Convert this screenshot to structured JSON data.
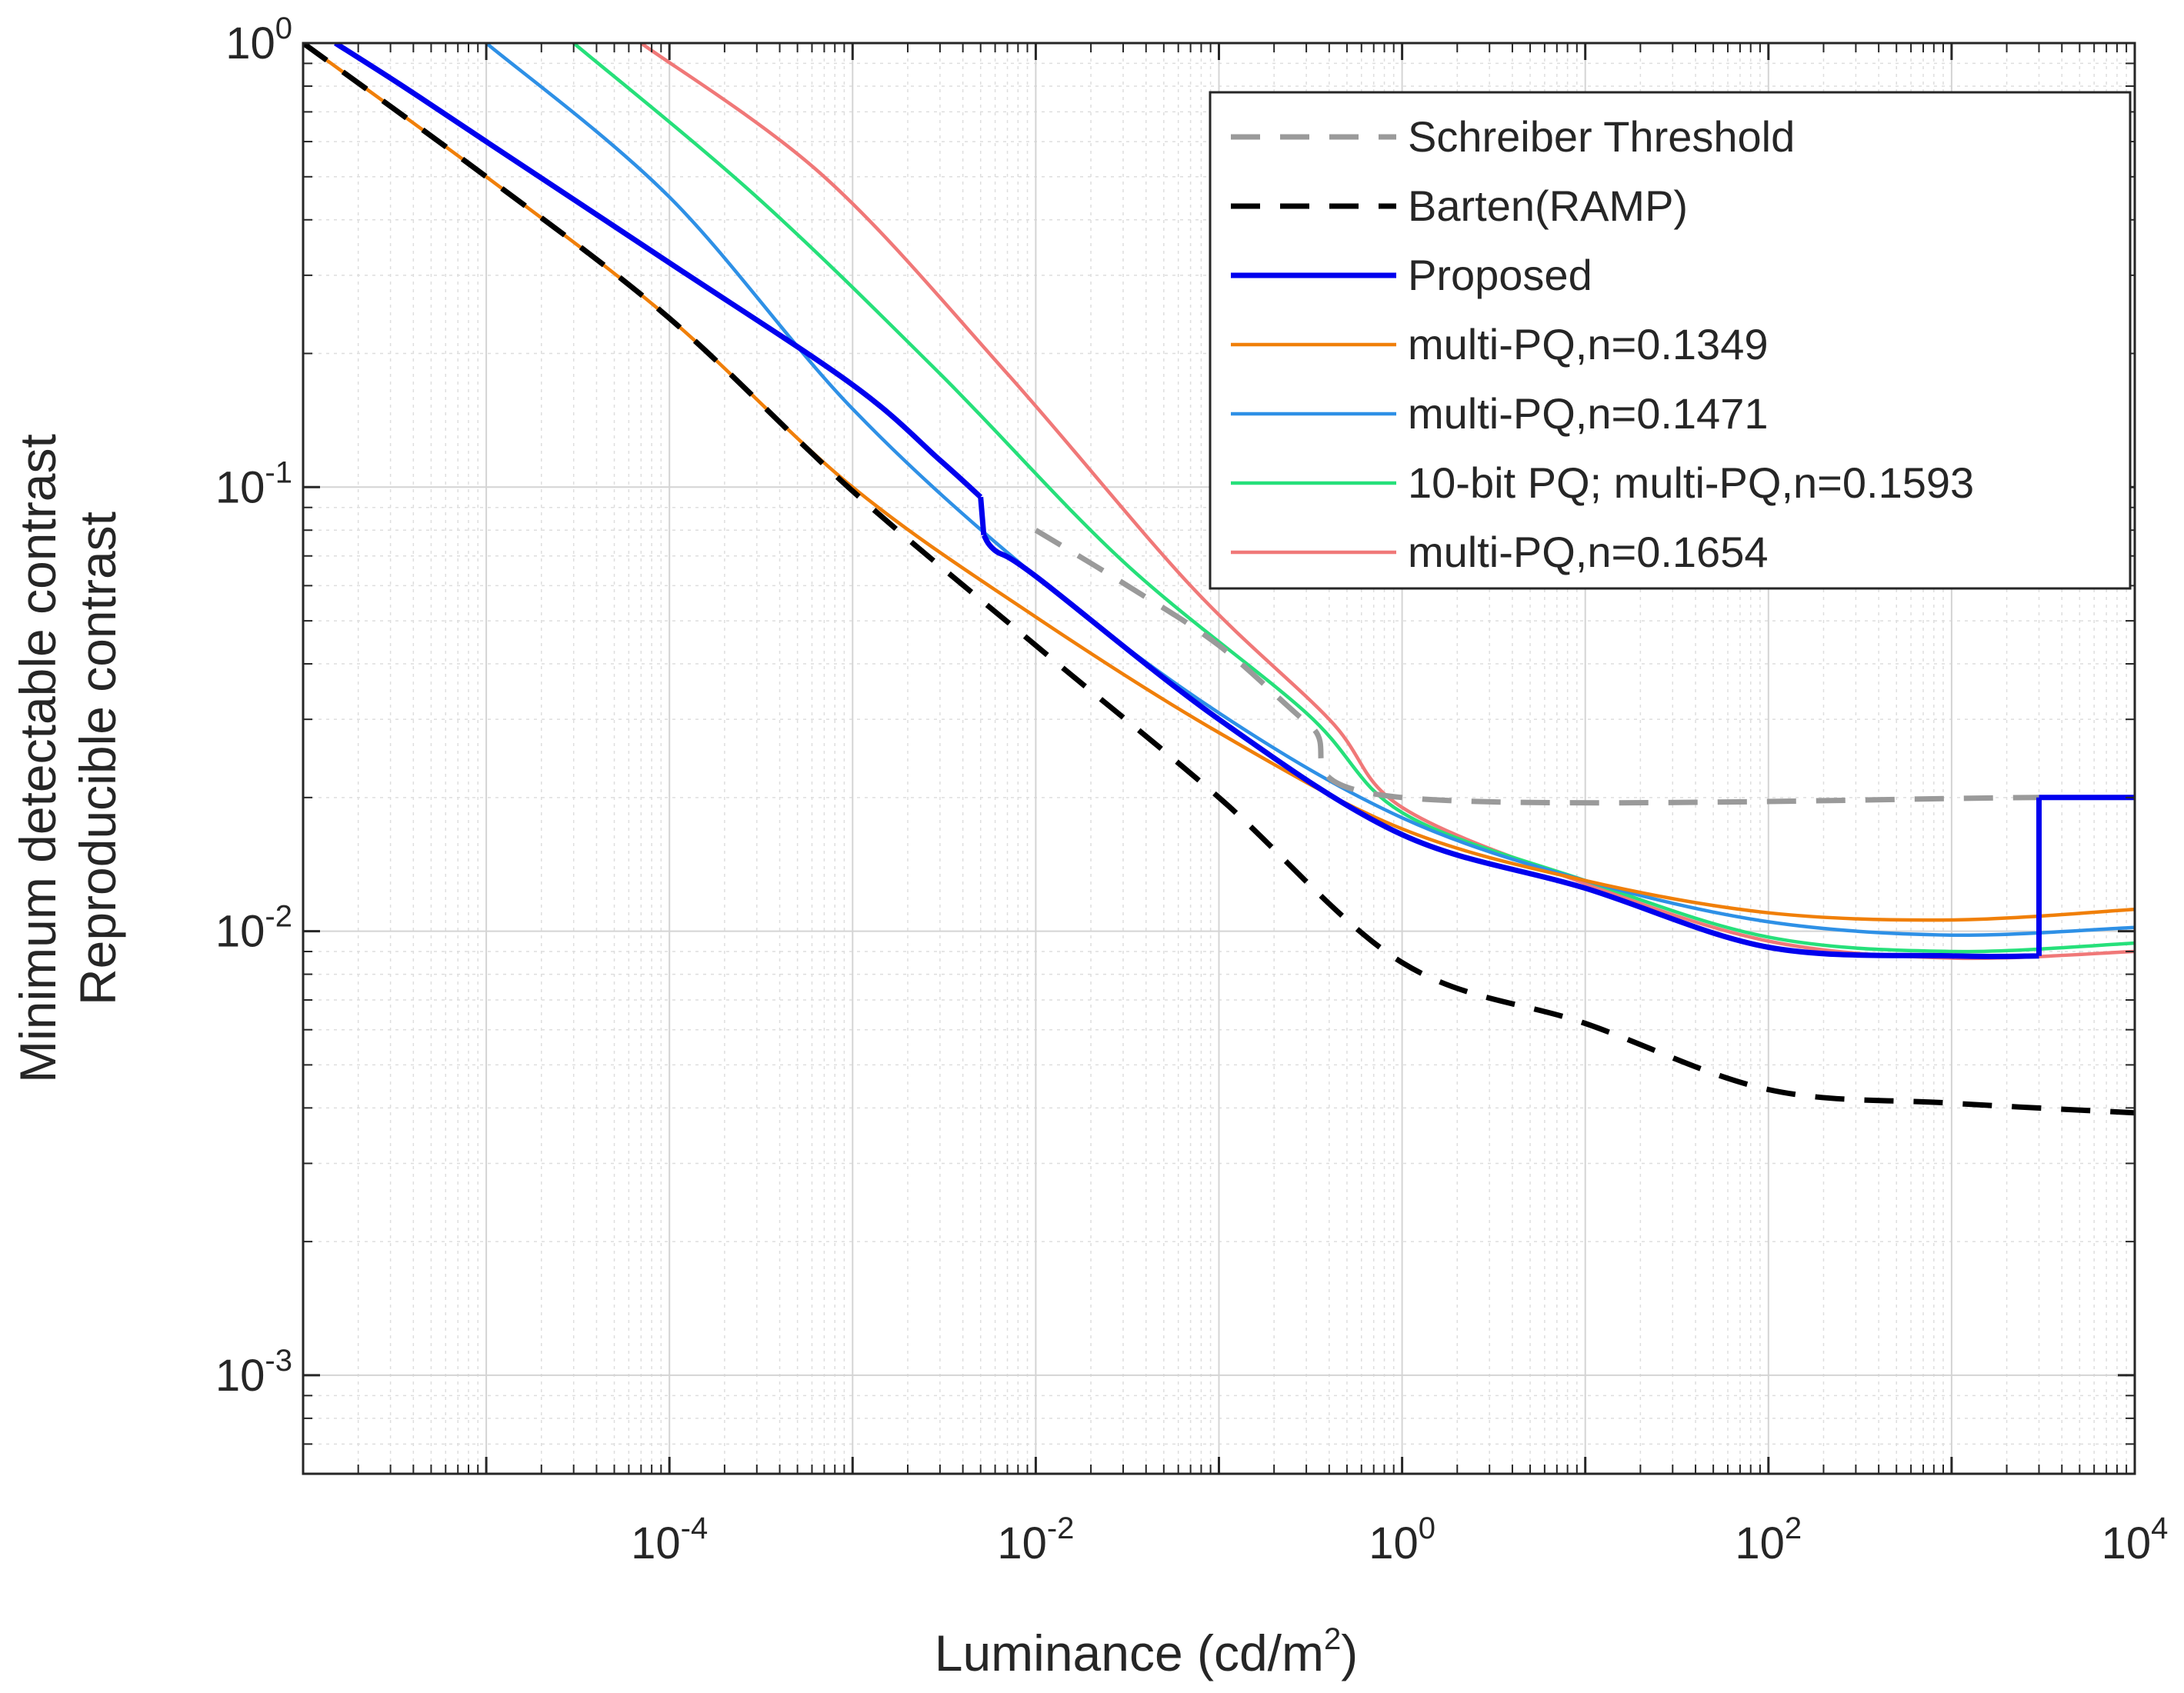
{
  "chart_data": {
    "type": "line",
    "xscale": "log",
    "yscale": "log",
    "xlim": [
      1e-06,
      10000
    ],
    "ylim": [
      0.0006,
      1
    ],
    "xlabel": "Luminance (cd/m2)",
    "xlabel_parts": {
      "main": "Luminance (cd/m",
      "sup": "2",
      "close": ")"
    },
    "ylabel_lines": [
      "Minimum detectable contrast",
      "Reproducible contrast"
    ],
    "grid": true,
    "minor_grid": true,
    "legend_position": "top-right",
    "x_ticks": [
      {
        "value": 0.0001,
        "base": "10",
        "exp": "-4"
      },
      {
        "value": 0.01,
        "base": "10",
        "exp": "-2"
      },
      {
        "value": 1,
        "base": "10",
        "exp": "0"
      },
      {
        "value": 100,
        "base": "10",
        "exp": "2"
      },
      {
        "value": 10000,
        "base": "10",
        "exp": "4"
      }
    ],
    "y_ticks": [
      {
        "value": 1,
        "base": "10",
        "exp": "0"
      },
      {
        "value": 0.1,
        "base": "10",
        "exp": "-1"
      },
      {
        "value": 0.01,
        "base": "10",
        "exp": "-2"
      },
      {
        "value": 0.001,
        "base": "10",
        "exp": "-3"
      }
    ],
    "series": [
      {
        "name": "Schreiber Threshold",
        "color": "#9a9a9a",
        "style": "dashed-gray",
        "points": [
          [
            0.01,
            0.08
          ],
          [
            0.03162,
            0.06
          ],
          [
            0.1,
            0.044
          ],
          [
            0.3162,
            0.029
          ],
          [
            1,
            0.02
          ],
          [
            3000,
            0.02
          ]
        ]
      },
      {
        "name": "Barten(RAMP)",
        "color": "#000000",
        "style": "dashed-black",
        "points": [
          [
            1e-06,
            1
          ],
          [
            1e-05,
            0.5
          ],
          [
            0.0001,
            0.24
          ],
          [
            0.001,
            0.098
          ],
          [
            0.01,
            0.044
          ],
          [
            0.1,
            0.02
          ],
          [
            1,
            0.0085
          ],
          [
            10,
            0.0062
          ],
          [
            100,
            0.0044
          ],
          [
            1000,
            0.0041
          ],
          [
            10000,
            0.0039
          ]
        ]
      },
      {
        "name": "Proposed",
        "color": "#0000ee",
        "style": "solid-thick",
        "points": [
          [
            1.5e-06,
            1
          ],
          [
            3.5e-06,
            0.8
          ],
          [
            1e-05,
            0.6
          ],
          [
            0.0001,
            0.32
          ],
          [
            0.001,
            0.17
          ],
          [
            0.003,
            0.115
          ],
          [
            0.005,
            0.095
          ],
          [
            0.0052,
            0.078
          ],
          [
            0.006,
            0.072
          ],
          [
            0.01,
            0.063
          ],
          [
            0.1,
            0.03
          ],
          [
            1,
            0.0165
          ],
          [
            10,
            0.0125
          ],
          [
            100,
            0.0092
          ],
          [
            1000,
            0.0088
          ],
          [
            3000,
            0.0088
          ],
          [
            3000,
            0.02
          ],
          [
            10000,
            0.02
          ]
        ]
      },
      {
        "name": "multi-PQ,n=0.1349",
        "color": "#f07f09",
        "style": "solid",
        "points": [
          [
            1e-06,
            1
          ],
          [
            1e-05,
            0.5
          ],
          [
            0.0001,
            0.24
          ],
          [
            0.001,
            0.1
          ],
          [
            0.01,
            0.051
          ],
          [
            0.1,
            0.028
          ],
          [
            1,
            0.017
          ],
          [
            10,
            0.013
          ],
          [
            100,
            0.011
          ],
          [
            1000,
            0.0106
          ],
          [
            10000,
            0.0112
          ]
        ]
      },
      {
        "name": "multi-PQ,n=0.1471",
        "color": "#2e90e6",
        "style": "solid",
        "points": [
          [
            1e-05,
            1
          ],
          [
            0.0001,
            0.45
          ],
          [
            0.001,
            0.15
          ],
          [
            0.01,
            0.063
          ],
          [
            0.1,
            0.031
          ],
          [
            1,
            0.018
          ],
          [
            10,
            0.013
          ],
          [
            100,
            0.0105
          ],
          [
            1000,
            0.0098
          ],
          [
            10000,
            0.0102
          ]
        ]
      },
      {
        "name": "10-bit PQ; multi-PQ,n=0.1593",
        "color": "#26e07a",
        "style": "solid",
        "points": [
          [
            3e-05,
            1
          ],
          [
            0.0003,
            0.45
          ],
          [
            0.003,
            0.18
          ],
          [
            0.03,
            0.068
          ],
          [
            0.3,
            0.031
          ],
          [
            1,
            0.0185
          ],
          [
            10,
            0.013
          ],
          [
            100,
            0.0097
          ],
          [
            1000,
            0.009
          ],
          [
            10000,
            0.0094
          ]
        ]
      },
      {
        "name": "multi-PQ,n=0.1654",
        "color": "#f07878",
        "style": "solid",
        "points": [
          [
            7e-05,
            1
          ],
          [
            0.0007,
            0.5
          ],
          [
            0.007,
            0.18
          ],
          [
            0.07,
            0.06
          ],
          [
            0.4,
            0.03
          ],
          [
            1,
            0.019
          ],
          [
            10,
            0.0128
          ],
          [
            100,
            0.0095
          ],
          [
            1000,
            0.0087
          ],
          [
            10000,
            0.009
          ]
        ]
      }
    ]
  }
}
